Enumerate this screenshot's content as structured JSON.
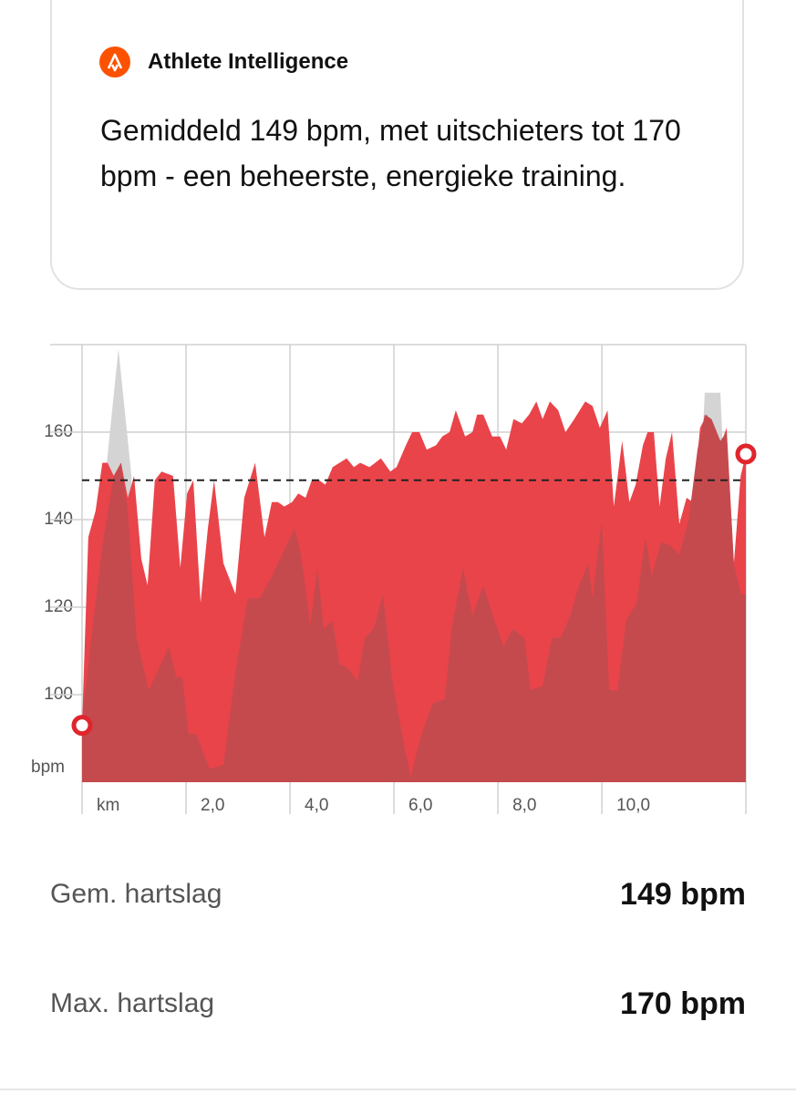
{
  "card": {
    "title": "Athlete Intelligence",
    "text": "Gemiddeld 149 bpm, met uitschieters tot 170 bpm - een beheerste, energieke training."
  },
  "chart_data": {
    "type": "area",
    "y_label": "bpm",
    "ylim": [
      80,
      180
    ],
    "yticks": [
      100,
      120,
      140,
      160
    ],
    "xlim": [
      0,
      12.77
    ],
    "xticks": [
      {
        "value": 0,
        "label": "km"
      },
      {
        "value": 2,
        "label": "2,0"
      },
      {
        "value": 4,
        "label": "4,0"
      },
      {
        "value": 6,
        "label": "6,0"
      },
      {
        "value": 8,
        "label": "8,0"
      },
      {
        "value": 10,
        "label": "10,0"
      }
    ],
    "average": 149,
    "grid": true,
    "series": [
      {
        "color": "#d4d4d4",
        "x": [
          0.45,
          0.7,
          0.95,
          1.0,
          11.9,
          11.98,
          12.28,
          12.35
        ],
        "values": [
          150,
          179,
          150,
          null,
          150,
          169,
          169,
          150
        ]
      },
      {
        "color": "#e9444a",
        "markers": true,
        "x": [
          0,
          0.12,
          0.26,
          0.39,
          0.49,
          0.61,
          0.75,
          0.88,
          1.0,
          1.14,
          1.26,
          1.4,
          1.53,
          1.75,
          1.89,
          2.02,
          2.14,
          2.28,
          2.42,
          2.54,
          2.72,
          2.95,
          3.12,
          3.33,
          3.51,
          3.65,
          3.77,
          3.89,
          4.04,
          4.16,
          4.3,
          4.42,
          4.56,
          4.68,
          4.82,
          5.09,
          5.23,
          5.35,
          5.53,
          5.75,
          5.93,
          6.05,
          6.23,
          6.35,
          6.49,
          6.63,
          6.81,
          6.93,
          7.07,
          7.19,
          7.37,
          7.51,
          7.6,
          7.72,
          7.89,
          8.04,
          8.16,
          8.3,
          8.46,
          8.6,
          8.74,
          8.86,
          9.0,
          9.16,
          9.3,
          9.47,
          9.68,
          9.82,
          9.96,
          10.11,
          10.23,
          10.39,
          10.53,
          10.65,
          10.79,
          10.88,
          11.0,
          11.11,
          11.23,
          11.35,
          11.49,
          11.63,
          11.75,
          11.89,
          12.02,
          12.16,
          12.28,
          12.4,
          12.54,
          12.67,
          12.77
        ],
        "values": [
          93,
          136,
          142,
          153,
          153,
          150,
          153,
          145,
          150,
          131,
          125,
          149,
          151,
          150,
          129,
          146,
          149,
          121,
          138,
          149,
          130,
          123,
          145,
          153,
          136,
          144,
          144,
          143,
          144,
          146,
          145,
          149,
          149,
          148,
          152,
          154,
          152,
          153,
          152,
          154,
          151,
          152,
          157,
          160,
          160,
          156,
          157,
          159,
          160,
          165,
          159,
          160,
          164,
          164,
          159,
          159,
          156,
          163,
          162,
          164,
          167,
          163,
          167,
          165,
          160,
          163,
          167,
          166,
          161,
          165,
          143,
          158,
          144,
          148,
          157,
          160,
          160,
          143,
          154,
          160,
          139,
          145,
          144,
          161,
          164,
          160,
          157,
          161,
          130,
          150,
          155
        ]
      },
      {
        "color": "#c44a4e",
        "x": [
          0,
          0.18,
          0.39,
          0.61,
          0.75,
          0.88,
          1.05,
          1.28,
          1.44,
          1.67,
          1.81,
          1.93,
          2.05,
          2.19,
          2.46,
          2.72,
          2.95,
          3.19,
          3.42,
          3.65,
          3.89,
          4.09,
          4.21,
          4.39,
          4.53,
          4.65,
          4.82,
          4.95,
          5.12,
          5.3,
          5.44,
          5.61,
          5.79,
          5.96,
          6.14,
          6.32,
          6.53,
          6.75,
          6.98,
          7.11,
          7.33,
          7.51,
          7.72,
          7.93,
          8.11,
          8.28,
          8.51,
          8.63,
          8.86,
          9.04,
          9.21,
          9.39,
          9.56,
          9.74,
          9.82,
          10.0,
          10.14,
          10.3,
          10.47,
          10.67,
          10.84,
          10.96,
          11.14,
          11.32,
          11.49,
          11.67,
          11.84,
          11.98,
          12.11,
          12.28,
          12.4,
          12.54,
          12.67,
          12.77
        ],
        "values": [
          94,
          113,
          134,
          150,
          153,
          142,
          113,
          101,
          105,
          111,
          104,
          104,
          91,
          91,
          83,
          84,
          105,
          122,
          122,
          127,
          133,
          138,
          132,
          116,
          129,
          115,
          117,
          107,
          106,
          103,
          113,
          115,
          123,
          104,
          92,
          81,
          91,
          98,
          99,
          115,
          129,
          118,
          125,
          117,
          111,
          115,
          113,
          101,
          102,
          113,
          113,
          118,
          125,
          130,
          122,
          140,
          101,
          101,
          117,
          121,
          136,
          127,
          135,
          134,
          132,
          140,
          156,
          164,
          163,
          158,
          160,
          130,
          123,
          123
        ]
      }
    ]
  },
  "stats": [
    {
      "label": "Gem. hartslag",
      "value": "149 bpm"
    },
    {
      "label": "Max. hartslag",
      "value": "170 bpm"
    }
  ]
}
